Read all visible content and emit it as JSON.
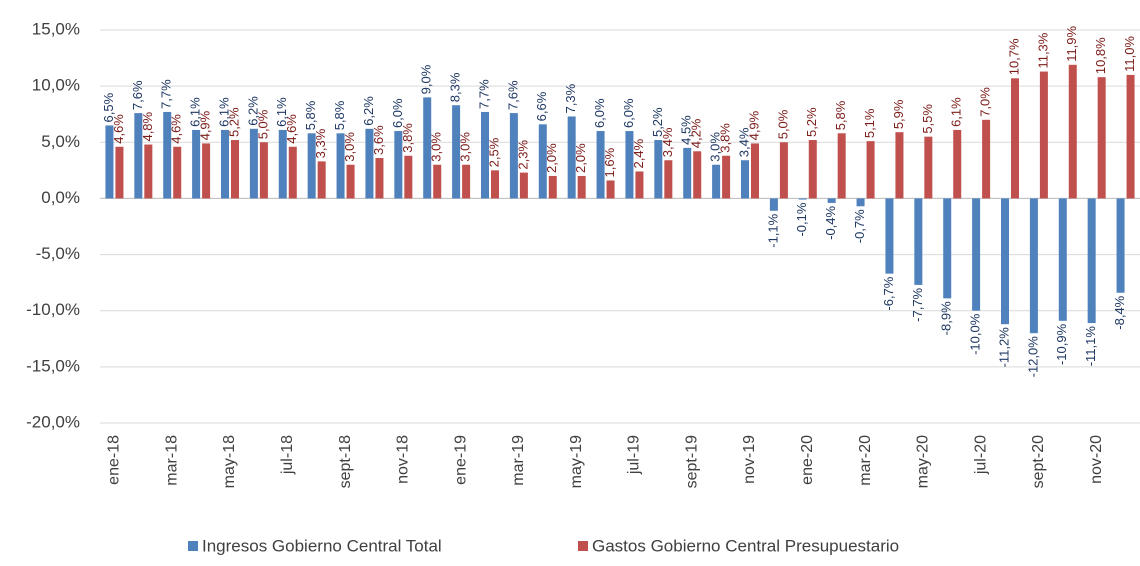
{
  "chart_data": {
    "type": "bar",
    "categories": [
      "ene-18",
      null,
      "mar-18",
      null,
      "may-18",
      null,
      "jul-18",
      null,
      "sept-18",
      null,
      "nov-18",
      null,
      "ene-19",
      null,
      "mar-19",
      null,
      "may-19",
      null,
      "jul-19",
      null,
      "sept-19",
      null,
      "nov-19",
      null,
      "ene-20",
      null,
      "mar-20",
      null,
      "may-20",
      null,
      "jul-20",
      null,
      "sept-20",
      null,
      "nov-20",
      null
    ],
    "series": [
      {
        "name": "Ingresos Gobierno Central Total",
        "color": "#4f81bd",
        "values": [
          6.5,
          7.6,
          7.7,
          6.1,
          6.1,
          6.2,
          6.1,
          5.8,
          5.8,
          6.2,
          6.0,
          9.0,
          8.3,
          7.7,
          7.6,
          6.6,
          7.3,
          6.0,
          6.0,
          5.2,
          4.5,
          3.0,
          3.4,
          -1.1,
          -0.1,
          -0.4,
          -0.7,
          -6.7,
          -7.7,
          -8.9,
          -10.0,
          -11.2,
          -12.0,
          -10.9,
          -11.1,
          -8.4
        ],
        "value_labels": [
          "6,5%",
          "7,6%",
          "7,7%",
          "6,1%",
          "6,1%",
          "6,2%",
          "6,1%",
          "5,8%",
          "5,8%",
          "6,2%",
          "6,0%",
          "9,0%",
          "8,3%",
          "7,7%",
          "7,6%",
          "6,6%",
          "7,3%",
          "6,0%",
          "6,0%",
          "5,2%",
          "4,5%",
          "3,0%",
          "3,4%",
          "-1,1%",
          "-0,1%",
          "-0,4%",
          "-0,7%",
          "-6,7%",
          "-7,7%",
          "-8,9%",
          "-10,0%",
          "-11,2%",
          "-12,0%",
          "-10,9%",
          "-11,1%",
          "-8,4%"
        ]
      },
      {
        "name": "Gastos Gobierno Central Presupuestario",
        "color": "#c0504d",
        "values": [
          4.6,
          4.8,
          4.6,
          4.9,
          5.2,
          5.0,
          4.6,
          3.3,
          3.0,
          3.6,
          3.8,
          3.0,
          3.0,
          2.5,
          2.3,
          2.0,
          2.0,
          1.6,
          2.4,
          3.4,
          4.2,
          3.8,
          4.9,
          5.0,
          5.2,
          5.8,
          5.1,
          5.9,
          5.5,
          6.1,
          7.0,
          10.7,
          11.3,
          11.9,
          10.8,
          11.0
        ],
        "value_labels": [
          "4,6%",
          "4,8%",
          "4,6%",
          "4,9%",
          "5,2%",
          "5,0%",
          "4,6%",
          "3,3%",
          "3,0%",
          "3,6%",
          "3,8%",
          "3,0%",
          "3,0%",
          "2,5%",
          "2,3%",
          "2,0%",
          "2,0%",
          "1,6%",
          "2,4%",
          "3,4%",
          "4,2%",
          "3,8%",
          "4,9%",
          "5,0%",
          "5,2%",
          "5,8%",
          "5,1%",
          "5,9%",
          "5,5%",
          "6,1%",
          "7,0%",
          "10,7%",
          "11,3%",
          "11,9%",
          "10,8%",
          "11,0%"
        ]
      }
    ],
    "ylim": [
      -20,
      15
    ],
    "yticks": [
      {
        "value": -20,
        "label": "-20,0%"
      },
      {
        "value": -15,
        "label": "-15,0%"
      },
      {
        "value": -10,
        "label": "-10,0%"
      },
      {
        "value": -5,
        "label": "-5,0%"
      },
      {
        "value": 0,
        "label": "0,0%"
      },
      {
        "value": 5,
        "label": "5,0%"
      },
      {
        "value": 10,
        "label": "10,0%"
      },
      {
        "value": 15,
        "label": "15,0%"
      }
    ],
    "grid": true,
    "legend": "bottom"
  }
}
